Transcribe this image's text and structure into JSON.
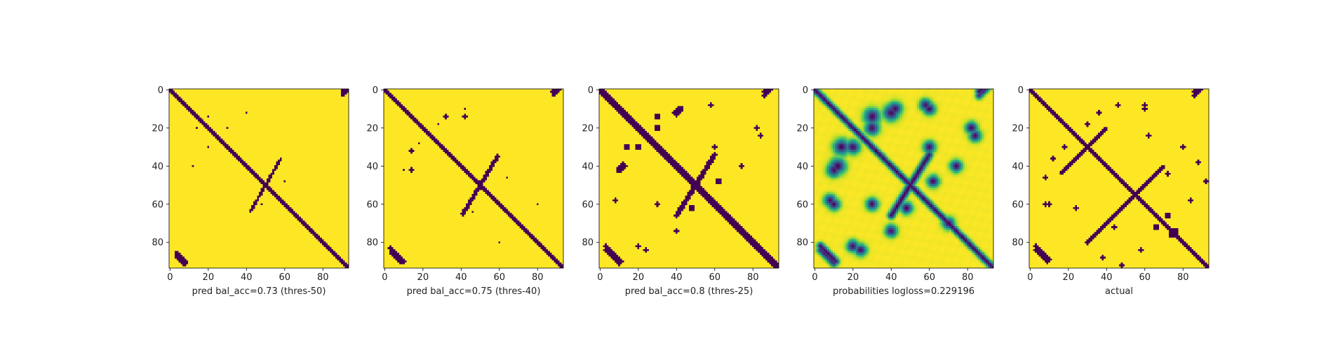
{
  "chart_data": [
    {
      "type": "heatmap",
      "xlabel": "pred bal_acc=0.73 (thres-50)",
      "matrix_size": 94,
      "colormap": "viridis",
      "binary": true,
      "x_ticks": [
        "0",
        "20",
        "40",
        "60",
        "80"
      ],
      "y_ticks": [
        "0",
        "20",
        "40",
        "60",
        "80"
      ],
      "xlim": [
        0,
        94
      ],
      "ylim": [
        94,
        0
      ],
      "features": {
        "diagonal_halfwidth": 1.4,
        "corners": [
          [
            1,
            90,
            6,
            1.2
          ],
          [
            85,
            3,
            6,
            1.2
          ]
        ],
        "antidiagonal": [
          [
            36,
            58
          ],
          [
            64,
            42
          ],
          1.0
        ],
        "blobs": [
          [
            14,
            20,
            1.2
          ],
          [
            30,
            20,
            1.0
          ],
          [
            40,
            12,
            1.0
          ],
          [
            48,
            60,
            1.0
          ]
        ]
      }
    },
    {
      "type": "heatmap",
      "xlabel": "pred bal_acc=0.75 (thres-40)",
      "matrix_size": 94,
      "colormap": "viridis",
      "binary": true,
      "x_ticks": [
        "0",
        "20",
        "40",
        "60",
        "80"
      ],
      "y_ticks": [
        "0",
        "20",
        "40",
        "60",
        "80"
      ],
      "xlim": [
        0,
        94
      ],
      "ylim": [
        94,
        0
      ],
      "features": {
        "diagonal_halfwidth": 1.6,
        "corners": [
          [
            1,
            88,
            7,
            1.3
          ],
          [
            83,
            3,
            7,
            1.3
          ]
        ],
        "antidiagonal": [
          [
            35,
            59
          ],
          [
            65,
            41
          ],
          1.3
        ],
        "blobs": [
          [
            14,
            42,
            1.5
          ],
          [
            18,
            28,
            1.2
          ],
          [
            32,
            14,
            1.5
          ],
          [
            42,
            10,
            1.2
          ],
          [
            46,
            64,
            1.2
          ],
          [
            60,
            80,
            1.2
          ]
        ]
      }
    },
    {
      "type": "heatmap",
      "xlabel": "pred bal_acc=0.8 (thres-25)",
      "matrix_size": 94,
      "colormap": "viridis",
      "binary": true,
      "x_ticks": [
        "0",
        "20",
        "40",
        "60",
        "80"
      ],
      "y_ticks": [
        "0",
        "20",
        "40",
        "60",
        "80"
      ],
      "xlim": [
        0,
        94
      ],
      "ylim": [
        94,
        0
      ],
      "features": {
        "diagonal_halfwidth": 1.9,
        "corners": [
          [
            1,
            86,
            8,
            1.6
          ],
          [
            82,
            3,
            8,
            1.6
          ]
        ],
        "antidiagonal": [
          [
            34,
            60
          ],
          [
            66,
            40
          ],
          1.6
        ],
        "blobs": [
          [
            12,
            40,
            2.5
          ],
          [
            20,
            30,
            2.0
          ],
          [
            30,
            14,
            2.0
          ],
          [
            42,
            10,
            2.0
          ],
          [
            48,
            62,
            1.8
          ],
          [
            58,
            8,
            1.5
          ],
          [
            60,
            30,
            1.5
          ],
          [
            74,
            40,
            1.5
          ],
          [
            82,
            20,
            1.5
          ],
          [
            24,
            84,
            1.3
          ]
        ]
      }
    },
    {
      "type": "heatmap",
      "xlabel": "probabilities logloss=0.229196",
      "matrix_size": 94,
      "colormap": "viridis",
      "binary": false,
      "x_ticks": [
        "0",
        "20",
        "40",
        "60",
        "80"
      ],
      "y_ticks": [
        "0",
        "20",
        "40",
        "60",
        "80"
      ],
      "xlim": [
        0,
        94
      ],
      "ylim": [
        94,
        0
      ],
      "features": {
        "diagonal_halfwidth": 1.6,
        "corners": [
          [
            1,
            86,
            8,
            1.8
          ],
          [
            82,
            3,
            8,
            1.8
          ]
        ],
        "antidiagonal": [
          [
            34,
            60
          ],
          [
            66,
            40
          ],
          1.8
        ],
        "blobs": [
          [
            12,
            40,
            4
          ],
          [
            20,
            30,
            3.5
          ],
          [
            30,
            14,
            4
          ],
          [
            42,
            10,
            3.5
          ],
          [
            48,
            62,
            3
          ],
          [
            58,
            8,
            3
          ],
          [
            60,
            30,
            3
          ],
          [
            74,
            40,
            3
          ],
          [
            82,
            20,
            3
          ],
          [
            24,
            84,
            3
          ],
          [
            10,
            60,
            3
          ],
          [
            70,
            70,
            3
          ]
        ]
      }
    },
    {
      "type": "heatmap",
      "xlabel": "actual",
      "matrix_size": 94,
      "colormap": "viridis",
      "binary": true,
      "x_ticks": [
        "0",
        "20",
        "40",
        "60",
        "80"
      ],
      "y_ticks": [
        "0",
        "20",
        "40",
        "60",
        "80"
      ],
      "xlim": [
        0,
        94
      ],
      "ylim": [
        94,
        0
      ],
      "features": {
        "diagonal_halfwidth": 1.6,
        "corners": [
          [
            1,
            86,
            7,
            1.4
          ],
          [
            82,
            3,
            7,
            1.4
          ]
        ],
        "antidiagonal": [
          [
            20,
            40
          ],
          [
            44,
            16
          ],
          1.2
        ],
        "secondary": [
          [
            40,
            70
          ],
          [
            80,
            30
          ],
          1.0
        ],
        "blobs": [
          [
            12,
            36,
            1.5
          ],
          [
            30,
            18,
            1.5
          ],
          [
            46,
            8,
            1.5
          ],
          [
            60,
            10,
            1.5
          ],
          [
            62,
            24,
            1.5
          ],
          [
            72,
            44,
            1.5
          ],
          [
            84,
            58,
            1.5
          ],
          [
            38,
            88,
            1.5
          ],
          [
            48,
            92,
            1.5
          ],
          [
            8,
            60,
            1.5
          ],
          [
            66,
            72,
            2.0
          ],
          [
            74,
            76,
            2.0
          ],
          [
            80,
            30,
            1.5
          ]
        ]
      }
    }
  ]
}
